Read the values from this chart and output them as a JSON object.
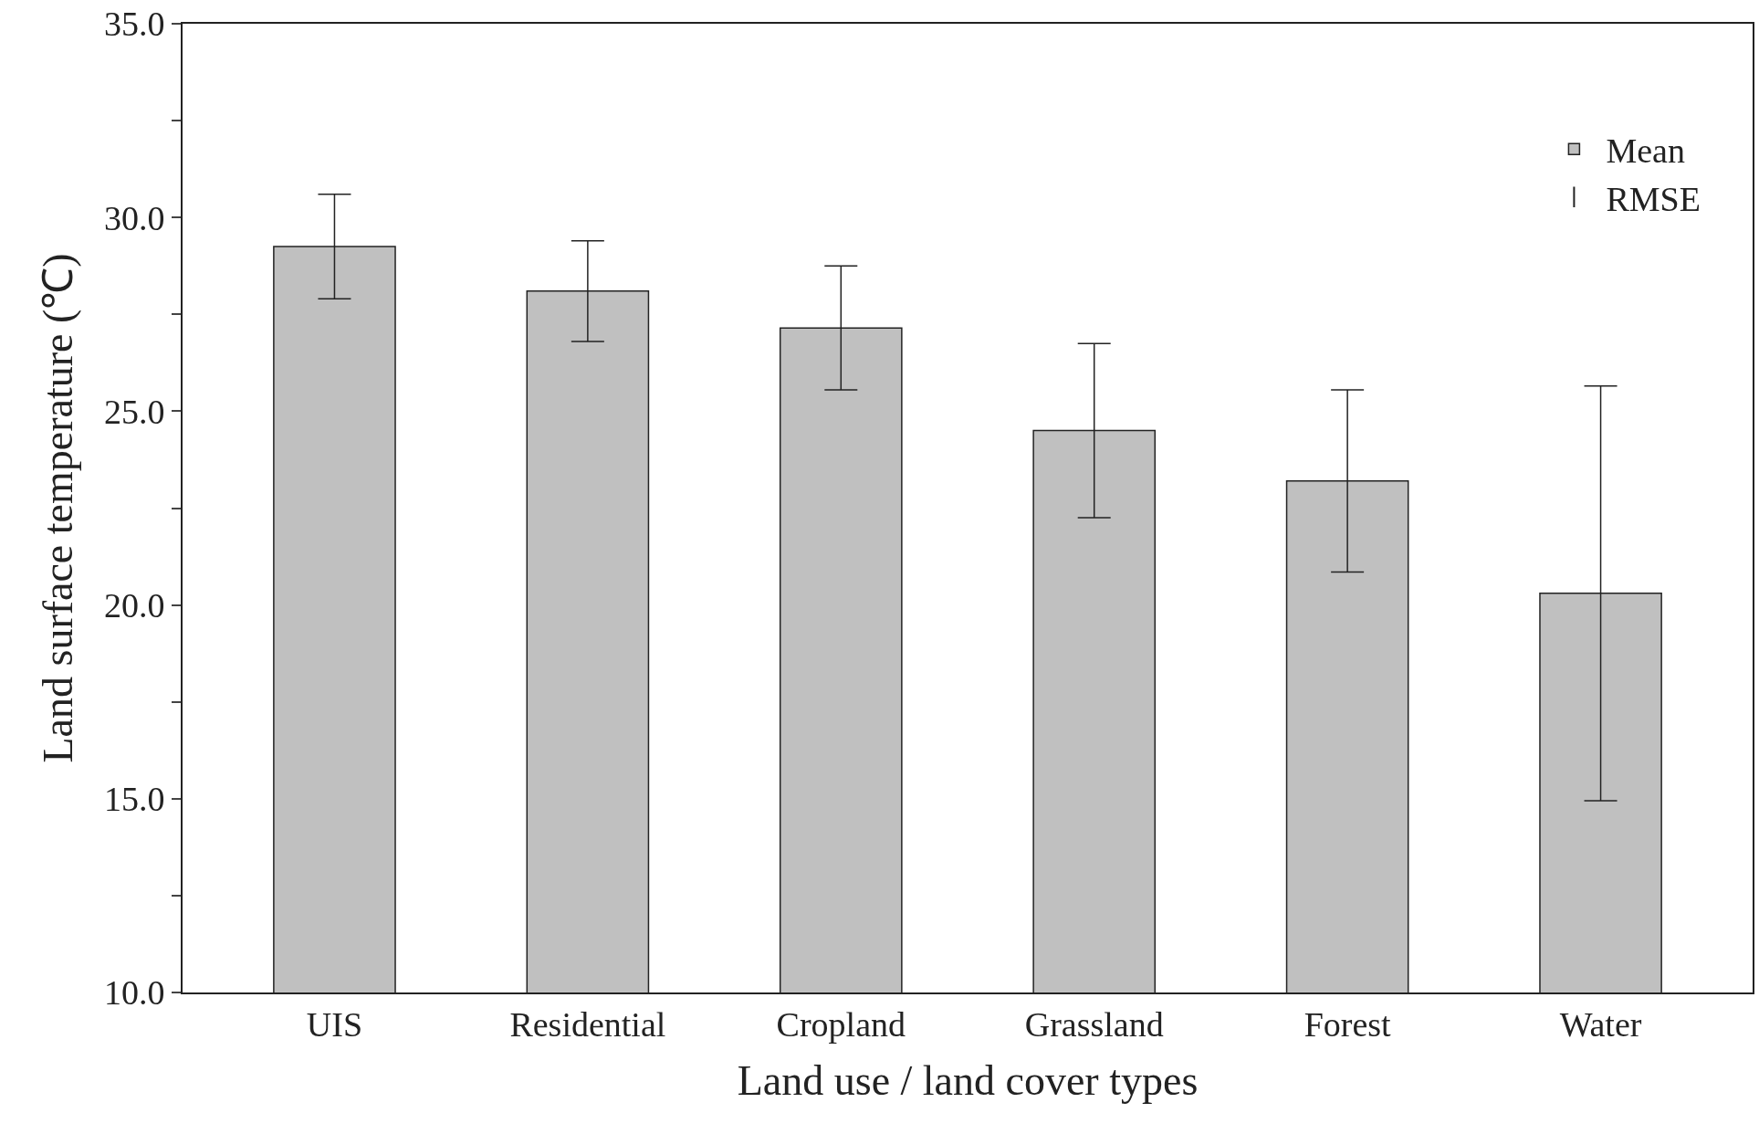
{
  "chart_data": {
    "type": "bar",
    "xlabel": "Land use / land cover types",
    "ylabel": "Land surface temperature (℃)",
    "categories": [
      "UIS",
      "Residential",
      "Cropland",
      "Grassland",
      "Forest",
      "Water"
    ],
    "series": [
      {
        "name": "Mean",
        "color": "#c0c0c0",
        "values": [
          29.25,
          28.1,
          27.15,
          24.5,
          23.2,
          20.3
        ],
        "errors": [
          1.35,
          1.3,
          1.6,
          2.25,
          2.35,
          5.35
        ]
      }
    ],
    "annotations": [
      "RMSE"
    ],
    "ylim": [
      10,
      35
    ],
    "yticks": [
      {
        "value": 10,
        "label": "10.0"
      },
      {
        "value": 12.5,
        "label": null
      },
      {
        "value": 15,
        "label": "15.0"
      },
      {
        "value": 17.5,
        "label": null
      },
      {
        "value": 20,
        "label": "20.0"
      },
      {
        "value": 22.5,
        "label": null
      },
      {
        "value": 25,
        "label": "25.0"
      },
      {
        "value": 27.5,
        "label": null
      },
      {
        "value": 30,
        "label": "30.0"
      },
      {
        "value": 32.5,
        "label": null
      },
      {
        "value": 35,
        "label": "35.0"
      }
    ],
    "legend": "top right"
  }
}
